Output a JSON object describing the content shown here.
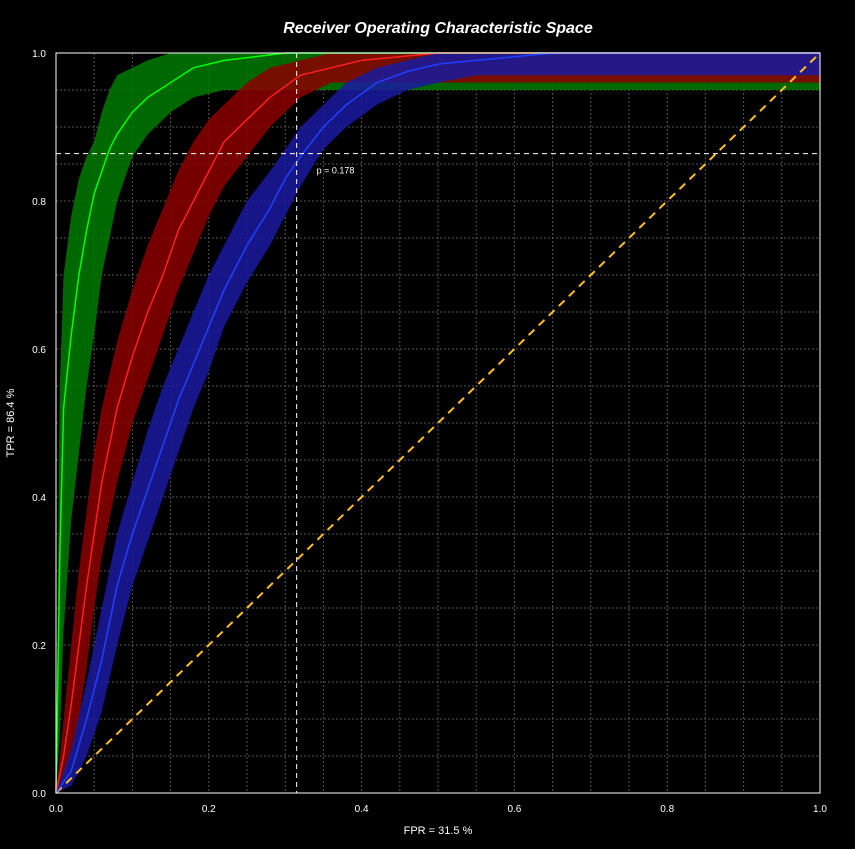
{
  "chart_data": {
    "type": "line",
    "title": "Receiver Operating Characteristic Space",
    "xlabel": "FPR = 31.5 %",
    "ylabel": "TPR = 86.4 %",
    "xlim": [
      0,
      1
    ],
    "ylim": [
      0,
      1
    ],
    "x_ticks": [
      "0.0",
      "0.2",
      "0.4",
      "0.6",
      "0.8",
      "1.0"
    ],
    "y_ticks": [
      "0.0",
      "0.2",
      "0.4",
      "0.6",
      "0.8",
      "1.0"
    ],
    "grid": true,
    "operating_point": {
      "fpr": 0.315,
      "tpr": 0.864,
      "label": "p = 0.178"
    },
    "series": [
      {
        "color": "#00ff00",
        "band_color": "#007a00",
        "x": [
          0,
          0.005,
          0.01,
          0.02,
          0.03,
          0.04,
          0.05,
          0.06,
          0.07,
          0.08,
          0.1,
          0.12,
          0.15,
          0.18,
          0.22,
          0.26,
          0.3,
          0.4,
          0.5,
          0.6,
          0.8,
          1.0
        ],
        "y": [
          0,
          0.32,
          0.52,
          0.62,
          0.7,
          0.76,
          0.81,
          0.84,
          0.87,
          0.89,
          0.92,
          0.94,
          0.96,
          0.98,
          0.99,
          0.995,
          1,
          1,
          1,
          1,
          1,
          1
        ],
        "lower": [
          0,
          0.08,
          0.22,
          0.37,
          0.46,
          0.55,
          0.62,
          0.7,
          0.75,
          0.8,
          0.86,
          0.89,
          0.92,
          0.94,
          0.95,
          0.95,
          0.95,
          0.95,
          0.95,
          0.95,
          0.95,
          0.95
        ],
        "upper": [
          0,
          0.55,
          0.7,
          0.78,
          0.83,
          0.86,
          0.88,
          0.92,
          0.95,
          0.97,
          0.98,
          0.99,
          1,
          1,
          1,
          1,
          1,
          1,
          1,
          1,
          1,
          1
        ]
      },
      {
        "color": "#ff2020",
        "band_color": "#8b0000",
        "x": [
          0,
          0.01,
          0.02,
          0.03,
          0.04,
          0.05,
          0.06,
          0.08,
          0.1,
          0.12,
          0.14,
          0.16,
          0.18,
          0.2,
          0.22,
          0.25,
          0.28,
          0.32,
          0.36,
          0.4,
          0.5,
          0.6,
          0.8,
          1.0
        ],
        "y": [
          0,
          0.05,
          0.12,
          0.2,
          0.28,
          0.35,
          0.42,
          0.52,
          0.59,
          0.65,
          0.7,
          0.76,
          0.8,
          0.84,
          0.88,
          0.91,
          0.94,
          0.97,
          0.98,
          0.99,
          1,
          1,
          1,
          1
        ],
        "lower": [
          0,
          0.02,
          0.05,
          0.1,
          0.17,
          0.25,
          0.32,
          0.42,
          0.5,
          0.56,
          0.62,
          0.68,
          0.73,
          0.78,
          0.82,
          0.86,
          0.9,
          0.94,
          0.96,
          0.96,
          0.96,
          0.96,
          0.96,
          0.96
        ],
        "upper": [
          0,
          0.1,
          0.2,
          0.3,
          0.38,
          0.46,
          0.52,
          0.61,
          0.68,
          0.74,
          0.79,
          0.84,
          0.88,
          0.91,
          0.93,
          0.96,
          0.98,
          0.99,
          1,
          1,
          1,
          1,
          1,
          1
        ]
      },
      {
        "color": "#2040ff",
        "band_color": "#1a1aa0",
        "x": [
          0,
          0.02,
          0.04,
          0.06,
          0.08,
          0.1,
          0.12,
          0.14,
          0.16,
          0.18,
          0.2,
          0.22,
          0.25,
          0.28,
          0.3,
          0.32,
          0.35,
          0.38,
          0.42,
          0.46,
          0.5,
          0.55,
          0.6,
          0.65,
          0.8,
          1.0
        ],
        "y": [
          0,
          0.03,
          0.1,
          0.18,
          0.28,
          0.35,
          0.41,
          0.47,
          0.53,
          0.58,
          0.63,
          0.68,
          0.74,
          0.79,
          0.83,
          0.86,
          0.9,
          0.93,
          0.96,
          0.975,
          0.985,
          0.99,
          0.995,
          1,
          1,
          1
        ],
        "lower": [
          0,
          0.01,
          0.05,
          0.11,
          0.2,
          0.28,
          0.34,
          0.4,
          0.46,
          0.52,
          0.57,
          0.63,
          0.69,
          0.74,
          0.78,
          0.82,
          0.87,
          0.9,
          0.93,
          0.95,
          0.96,
          0.97,
          0.97,
          0.97,
          0.97,
          0.97
        ],
        "upper": [
          0,
          0.06,
          0.15,
          0.25,
          0.35,
          0.42,
          0.49,
          0.55,
          0.6,
          0.65,
          0.7,
          0.74,
          0.8,
          0.84,
          0.87,
          0.9,
          0.93,
          0.96,
          0.98,
          0.99,
          1,
          1,
          1,
          1,
          1,
          1
        ]
      }
    ],
    "reference_line": {
      "color": "#ffc020",
      "style": "dashed",
      "x": [
        0,
        1
      ],
      "y": [
        0,
        1
      ]
    }
  }
}
